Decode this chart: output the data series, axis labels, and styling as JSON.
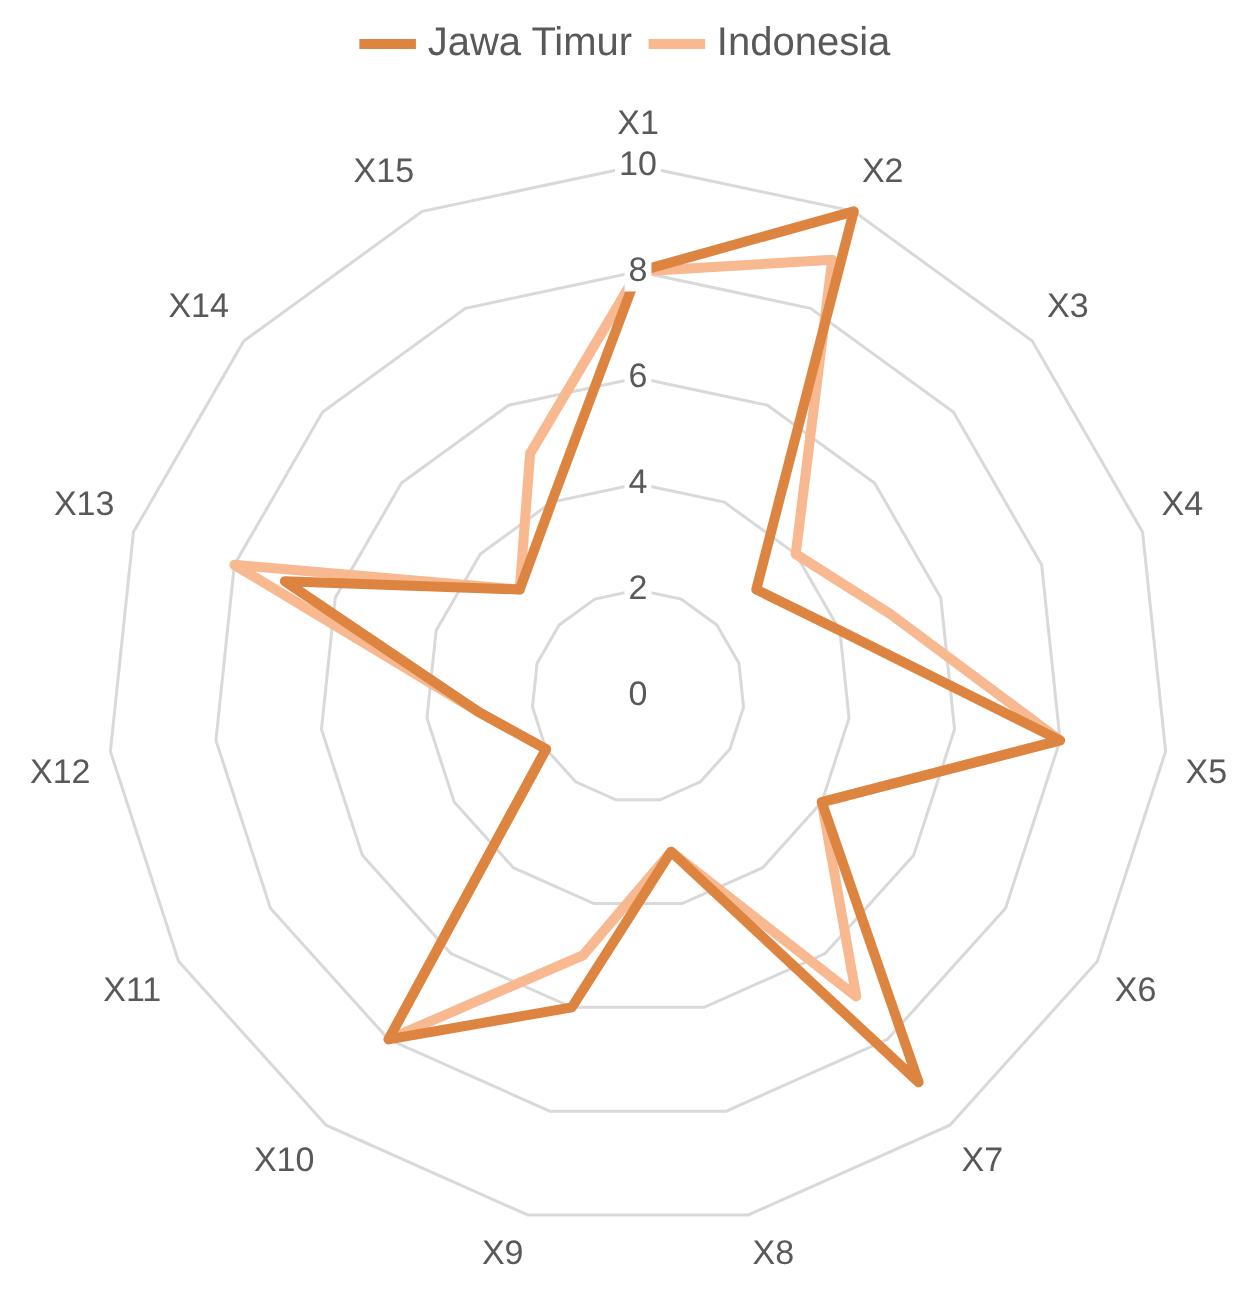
{
  "chart_data": {
    "type": "radar",
    "categories": [
      "X1",
      "X2",
      "X3",
      "X4",
      "X5",
      "X6",
      "X7",
      "X8",
      "X9",
      "X10",
      "X11",
      "X12",
      "X13",
      "X14",
      "X15"
    ],
    "series": [
      {
        "name": "Jawa Timur",
        "color": "#dd8540",
        "values": [
          8,
          10,
          3,
          4,
          8,
          4,
          9,
          3,
          6,
          8,
          2,
          3,
          7,
          3,
          4
        ]
      },
      {
        "name": "Indonesia",
        "color": "#f8b890",
        "values": [
          8,
          9,
          4,
          5,
          8,
          4,
          7,
          3,
          5,
          8,
          2,
          3,
          8,
          3,
          5
        ]
      }
    ],
    "ylim": [
      0,
      10
    ],
    "yticks": [
      0,
      2,
      4,
      6,
      8,
      10
    ],
    "grid": true,
    "legend": "top",
    "marker": "none"
  }
}
